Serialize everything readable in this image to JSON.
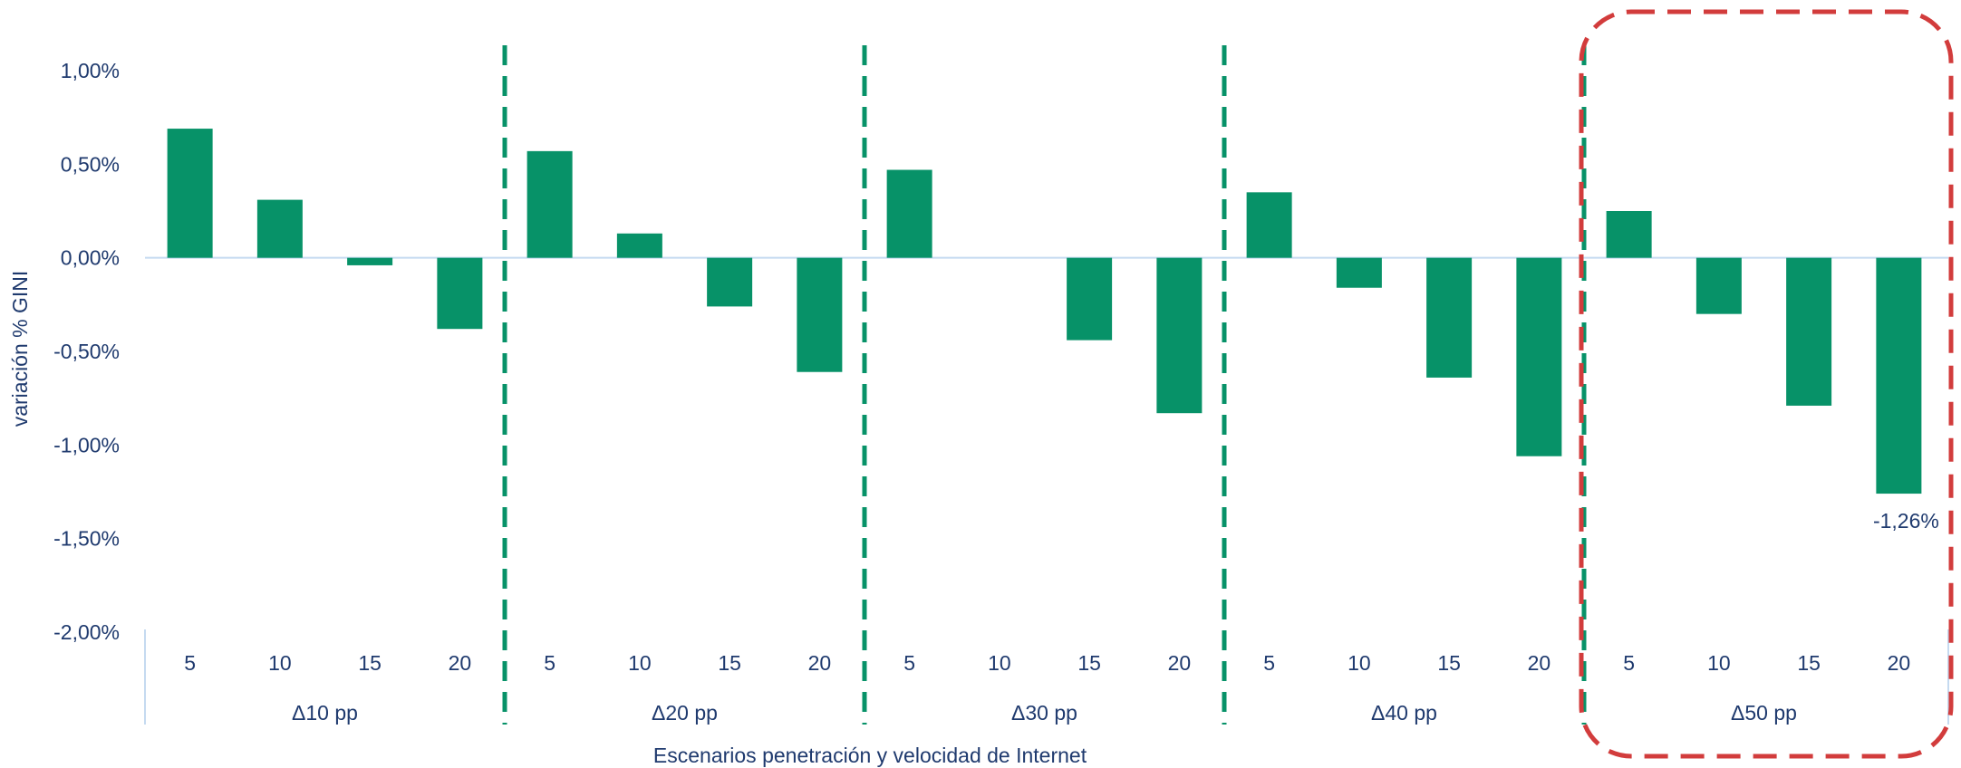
{
  "chart_data": {
    "type": "bar",
    "xlabel": "Escenarios penetración y velocidad de Internet",
    "ylabel": "variación % GINI",
    "ylim": [
      -2.0,
      1.0
    ],
    "yticks": [
      1.0,
      0.5,
      0.0,
      -0.5,
      -1.0,
      -1.5,
      -2.0
    ],
    "ytick_labels": [
      "1,00%",
      "0,50%",
      "0,00%",
      "-0,50%",
      "-1,00%",
      "-1,50%",
      "-2,00%"
    ],
    "groups": [
      {
        "label": "Δ10 pp",
        "categories": [
          "5",
          "10",
          "15",
          "20"
        ],
        "values": [
          0.69,
          0.31,
          -0.04,
          -0.38
        ]
      },
      {
        "label": "Δ20 pp",
        "categories": [
          "5",
          "10",
          "15",
          "20"
        ],
        "values": [
          0.57,
          0.13,
          -0.26,
          -0.61
        ]
      },
      {
        "label": "Δ30 pp",
        "categories": [
          "5",
          "10",
          "15",
          "20"
        ],
        "values": [
          0.47,
          0.0,
          -0.44,
          -0.83
        ]
      },
      {
        "label": "Δ40 pp",
        "categories": [
          "5",
          "10",
          "15",
          "20"
        ],
        "values": [
          0.35,
          -0.16,
          -0.64,
          -1.06
        ]
      },
      {
        "label": "Δ50 pp",
        "categories": [
          "5",
          "10",
          "15",
          "20"
        ],
        "values": [
          0.25,
          -0.3,
          -0.79,
          -1.26
        ]
      }
    ],
    "data_labels": [
      {
        "group": 4,
        "index": 3,
        "text": "-1,26%"
      }
    ],
    "highlight_group": 4,
    "grid": false,
    "legend": "none",
    "colors": {
      "bar": "#079268",
      "separator": "#079268",
      "highlight": "#d23c3c",
      "text": "#1f3a6e",
      "axis": "#c5daf0"
    }
  }
}
